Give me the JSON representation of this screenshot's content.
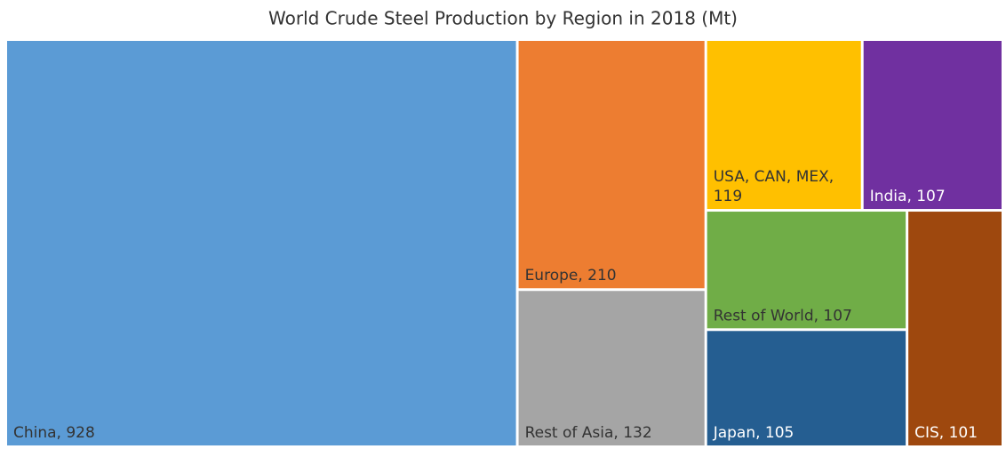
{
  "chart_data": {
    "type": "treemap",
    "title": "World Crude Steel Production by Region in 2018 (Mt)",
    "values": [
      928,
      210,
      132,
      119,
      107,
      107,
      105,
      101
    ],
    "value_labels": [
      "China, 928",
      "Europe, 210",
      "Rest of Asia, 132",
      "USA, CAN, MEX, 119",
      "India, 107",
      "Rest of World, 107",
      "Japan, 105",
      "CIS, 101"
    ],
    "colors": [
      "#5b9bd5",
      "#ed7d31",
      "#a5a5a5",
      "#ffc000",
      "#7030a0",
      "#70ad47",
      "#255e91",
      "#9e480e"
    ]
  }
}
